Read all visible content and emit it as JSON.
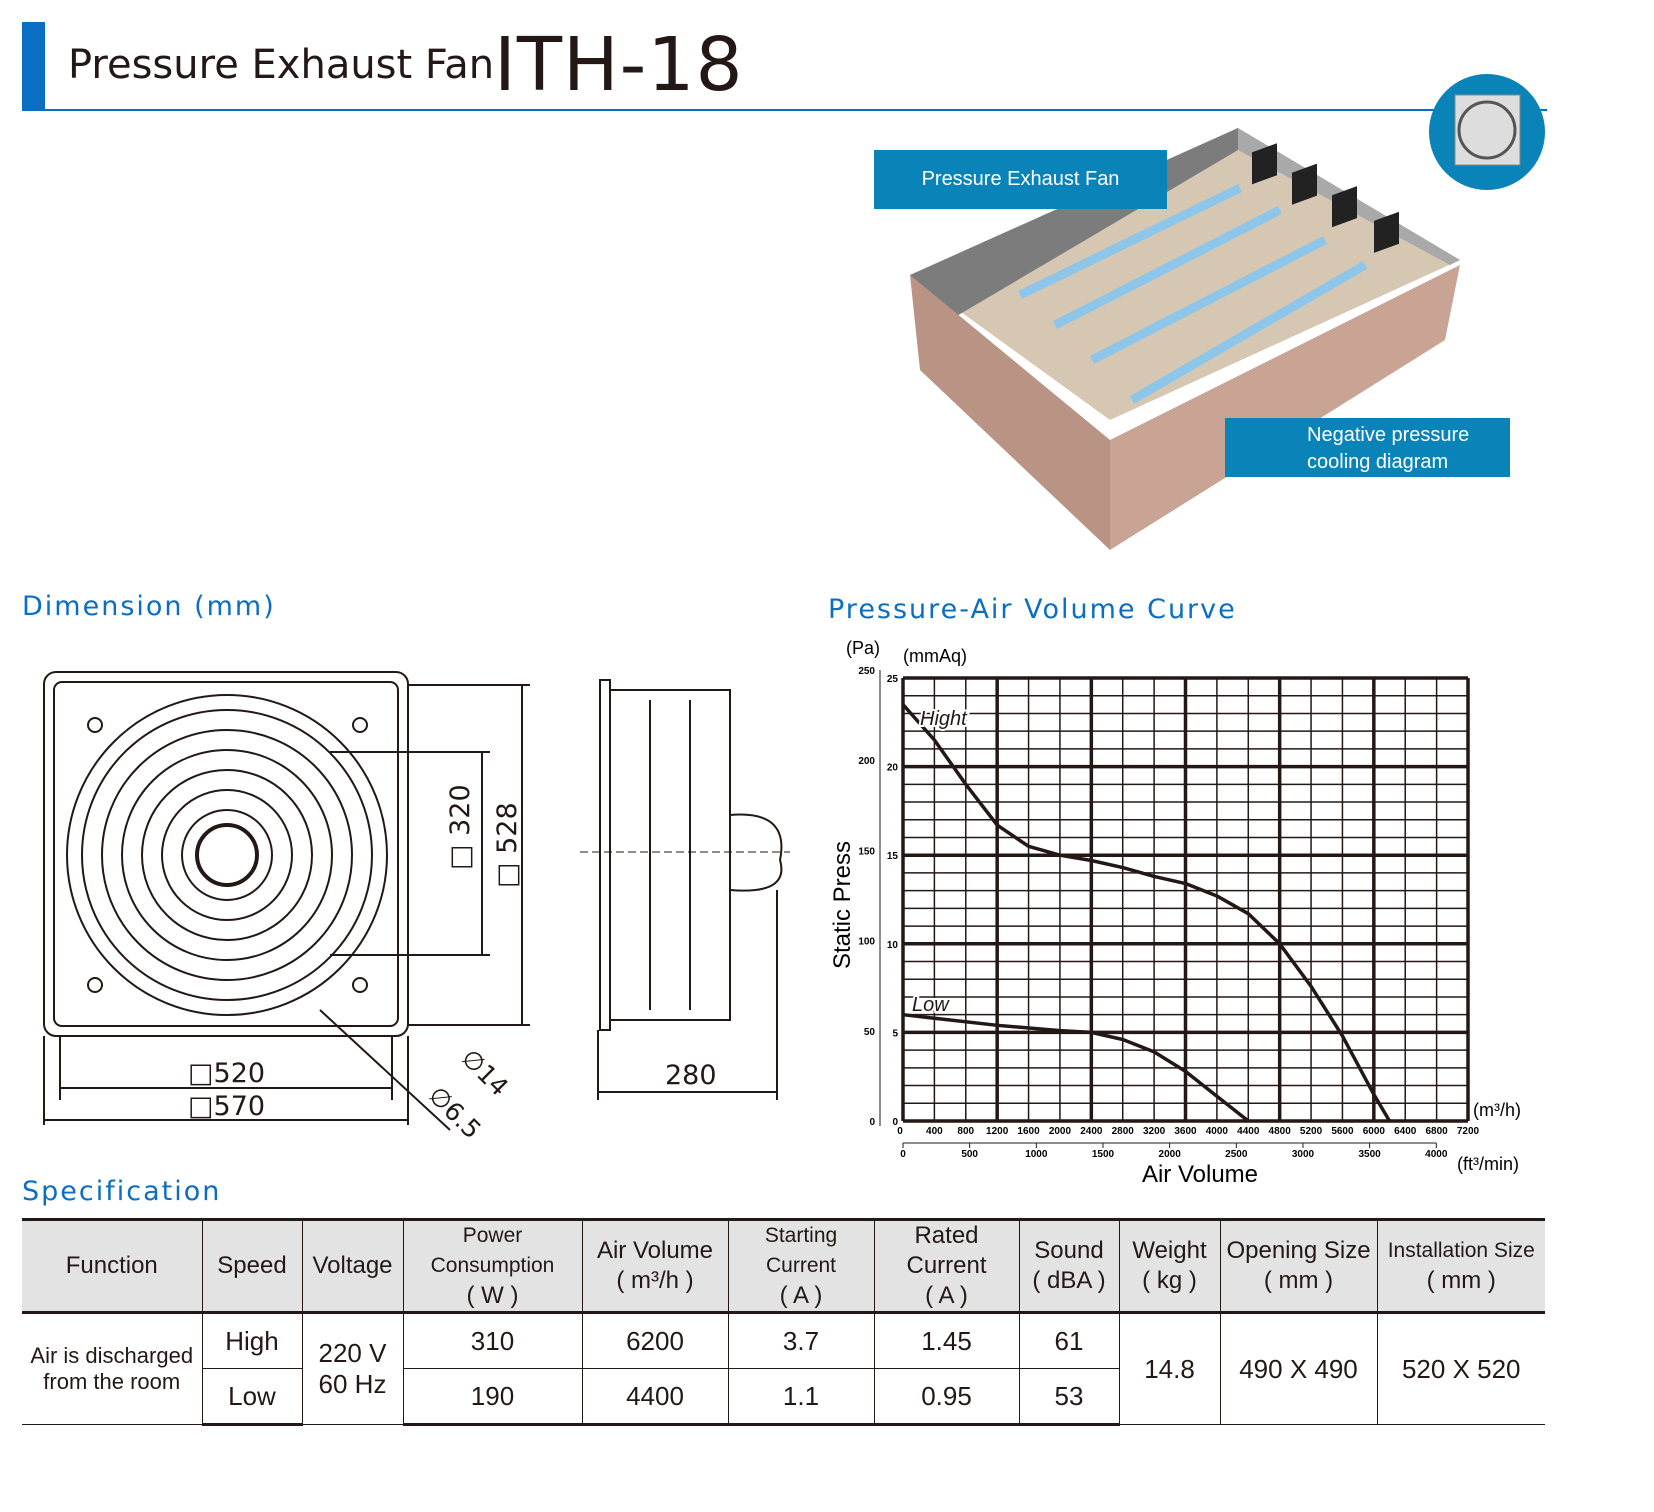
{
  "header": {
    "subtitle": "Pressure Exhaust Fan",
    "model": "ITH-18",
    "accent": "#0a6fc2"
  },
  "illustration": {
    "label_fan": "Pressure Exhaust Fan",
    "label_diagram_1": "Negative pressure",
    "label_diagram_2": "cooling diagram",
    "caption_color": "#0a84b8"
  },
  "dimension": {
    "title": "Dimension (mm)",
    "d320": "320",
    "d528": "528",
    "d520": "520",
    "d570": "570",
    "phi14": "∅14",
    "phi65": "∅6.5",
    "depth": "280"
  },
  "chart_data": {
    "type": "line",
    "title": "Pressure-Air Volume Curve",
    "ylabel": "Static Press",
    "xlabel": "Air Volume",
    "y_unit_left": "(Pa)",
    "y_unit_right": "(mmAq)",
    "x_unit": "(m³/h)",
    "x2_unit": "(ft³/min)",
    "xlim": [
      0,
      7200
    ],
    "ylim_mmAq": [
      0,
      25
    ],
    "ylim_Pa": [
      0,
      250
    ],
    "grid": true,
    "x_ticks": [
      "0",
      "400",
      "800",
      "1200",
      "1600",
      "2000",
      "2400",
      "2800",
      "3200",
      "3600",
      "4000",
      "4400",
      "4800",
      "5200",
      "5600",
      "6000",
      "6400",
      "6800",
      "7200"
    ],
    "x2_ticks": [
      "0",
      "500",
      "1000",
      "1500",
      "2000",
      "2500",
      "3000",
      "3500",
      "4000"
    ],
    "y_ticks_Pa": [
      "0",
      "50",
      "100",
      "150",
      "200",
      "250"
    ],
    "y_ticks_mmAq": [
      "0",
      "5",
      "10",
      "15",
      "20",
      "25"
    ],
    "series": [
      {
        "name": "Hight",
        "x": [
          0,
          400,
          800,
          1200,
          1600,
          2000,
          2400,
          2800,
          3200,
          3600,
          4000,
          4400,
          4800,
          5200,
          5600,
          6000,
          6200
        ],
        "y": [
          23.5,
          21.5,
          19,
          16.7,
          15.5,
          15,
          14.7,
          14.3,
          13.8,
          13.4,
          12.7,
          11.7,
          10,
          7.6,
          4.8,
          1.5,
          0
        ]
      },
      {
        "name": "Low",
        "x": [
          0,
          400,
          1200,
          2000,
          2400,
          2800,
          3200,
          3600,
          4000,
          4400
        ],
        "y": [
          6,
          5.8,
          5.4,
          5.1,
          5,
          4.6,
          3.9,
          2.8,
          1.4,
          0
        ]
      }
    ]
  },
  "spec": {
    "title": "Specification",
    "headers": [
      [
        "Function",
        ""
      ],
      [
        "Speed",
        ""
      ],
      [
        "Voltage",
        ""
      ],
      [
        "Power Consumption",
        "( W )"
      ],
      [
        "Air Volume",
        "( m³/h )"
      ],
      [
        "Starting Current",
        "( A )"
      ],
      [
        "Rated Current",
        "( A )"
      ],
      [
        "Sound",
        "( dBA )"
      ],
      [
        "Weight",
        "( kg )"
      ],
      [
        "Opening Size",
        "( mm )"
      ],
      [
        "Installation Size",
        "( mm )"
      ]
    ],
    "function_1": "Air is discharged",
    "function_2": "from the room",
    "voltage_1": "220 V",
    "voltage_2": "60 Hz",
    "rows": [
      {
        "speed": "High",
        "power": "310",
        "air": "6200",
        "start": "3.7",
        "rated": "1.45",
        "sound": "61"
      },
      {
        "speed": "Low",
        "power": "190",
        "air": "4400",
        "start": "1.1",
        "rated": "0.95",
        "sound": "53"
      }
    ],
    "weight": "14.8",
    "opening": "490 X 490",
    "installation": "520 X 520"
  }
}
